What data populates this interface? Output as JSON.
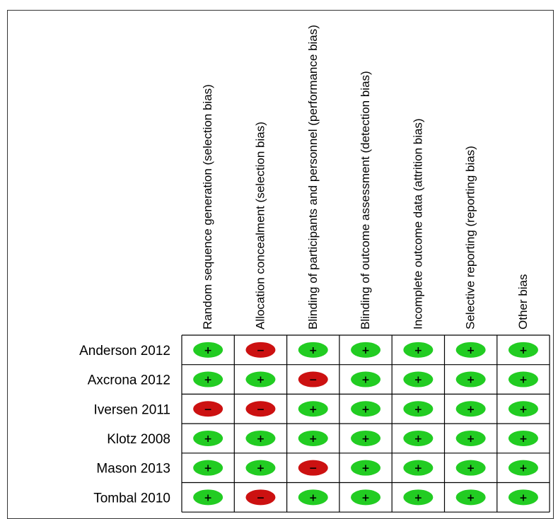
{
  "chart_data": {
    "type": "table",
    "columns": [
      "Random sequence generation (selection bias)",
      "Allocation concealment (selection bias)",
      "Blinding of participants and personnel (performance bias)",
      "Blinding of outcome assessment (detection bias)",
      "Incomplete outcome data (attrition bias)",
      "Selective reporting (reporting bias)",
      "Other bias"
    ],
    "rows": [
      {
        "study": "Anderson 2012",
        "ratings": [
          "low",
          "high",
          "low",
          "low",
          "low",
          "low",
          "low"
        ]
      },
      {
        "study": "Axcrona 2012",
        "ratings": [
          "low",
          "low",
          "high",
          "low",
          "low",
          "low",
          "low"
        ]
      },
      {
        "study": "Iversen 2011",
        "ratings": [
          "high",
          "high",
          "low",
          "low",
          "low",
          "low",
          "low"
        ]
      },
      {
        "study": "Klotz 2008",
        "ratings": [
          "low",
          "low",
          "low",
          "low",
          "low",
          "low",
          "low"
        ]
      },
      {
        "study": "Mason 2013",
        "ratings": [
          "low",
          "low",
          "high",
          "low",
          "low",
          "low",
          "low"
        ]
      },
      {
        "study": "Tombal 2010",
        "ratings": [
          "low",
          "high",
          "low",
          "low",
          "low",
          "low",
          "low"
        ]
      }
    ],
    "legend_symbols": {
      "low": {
        "symbol": "+",
        "color": "#22cc22"
      },
      "high": {
        "symbol": "−",
        "color": "#cc1111"
      }
    }
  }
}
